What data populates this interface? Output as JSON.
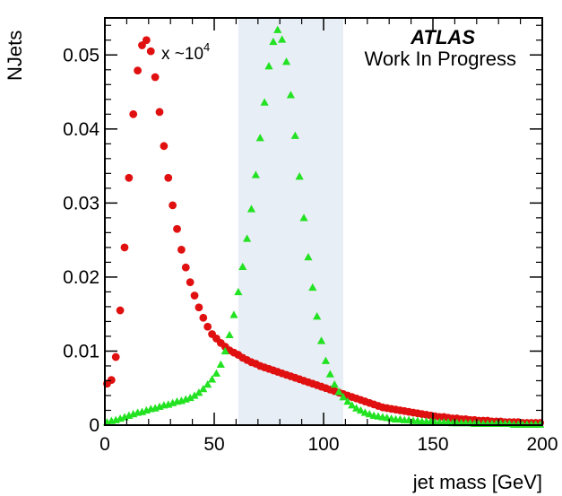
{
  "chart_data": {
    "type": "scatter",
    "xlabel": "jet mass [GeV]",
    "ylabel": "NJets",
    "xlim": [
      0,
      200
    ],
    "ylim": [
      0,
      0.055
    ],
    "x_ticks": [
      "0",
      "50",
      "100",
      "150",
      "200"
    ],
    "y_ticks": [
      "0",
      "0.01",
      "0.02",
      "0.03",
      "0.04",
      "0.05"
    ],
    "x_tick_values": [
      0,
      50,
      100,
      150,
      200
    ],
    "y_tick_values": [
      0,
      0.01,
      0.02,
      0.03,
      0.04,
      0.05
    ],
    "annotations": {
      "experiment": "ATLAS",
      "status": "Work In Progress",
      "scale_prefix": "x ~10",
      "scale_exponent": "4"
    },
    "highlight_band": {
      "x_start": 61,
      "x_end": 109,
      "color": "#e8eef5"
    },
    "grid": false,
    "series": [
      {
        "marker": "circle",
        "color": "#e01010",
        "x": [
          1,
          3,
          5,
          7,
          9,
          11,
          13,
          15,
          17,
          19,
          21,
          23,
          25,
          27,
          29,
          31,
          33,
          35,
          37,
          39,
          41,
          43,
          45,
          47,
          49,
          51,
          53,
          55,
          57,
          59,
          61,
          63,
          65,
          67,
          69,
          71,
          73,
          75,
          77,
          79,
          81,
          83,
          85,
          87,
          89,
          91,
          93,
          95,
          97,
          99,
          101,
          103,
          105,
          107,
          109,
          111,
          113,
          115,
          117,
          119,
          121,
          123,
          125,
          127,
          129,
          131,
          133,
          135,
          137,
          139,
          141,
          143,
          145,
          147,
          149,
          151,
          153,
          155,
          157,
          159,
          161,
          163,
          165,
          167,
          169,
          171,
          173,
          175,
          177,
          179,
          181,
          183,
          185,
          187,
          189,
          191,
          193,
          195,
          197,
          199
        ],
        "y": [
          0.0056,
          0.0061,
          0.0092,
          0.0155,
          0.024,
          0.0334,
          0.042,
          0.0479,
          0.0513,
          0.052,
          0.0505,
          0.047,
          0.0423,
          0.0377,
          0.0334,
          0.0297,
          0.0265,
          0.0237,
          0.0213,
          0.0193,
          0.0175,
          0.0159,
          0.0145,
          0.0133,
          0.0123,
          0.0117,
          0.0111,
          0.0106,
          0.0101,
          0.0098,
          0.0095,
          0.0091,
          0.0088,
          0.0085,
          0.0083,
          0.008,
          0.0078,
          0.0076,
          0.0074,
          0.0072,
          0.007,
          0.0068,
          0.0066,
          0.0064,
          0.0062,
          0.006,
          0.0058,
          0.0056,
          0.0054,
          0.0052,
          0.005,
          0.0048,
          0.0046,
          0.0044,
          0.0042,
          0.004,
          0.0038,
          0.0036,
          0.0034,
          0.0032,
          0.003,
          0.0028,
          0.0026,
          0.0024,
          0.0023,
          0.0022,
          0.0021,
          0.002,
          0.0019,
          0.0018,
          0.0017,
          0.0016,
          0.0015,
          0.0014,
          0.0013,
          0.0012,
          0.0011,
          0.0011,
          0.001,
          0.0009,
          0.0009,
          0.0008,
          0.0008,
          0.0007,
          0.0007,
          0.0006,
          0.0006,
          0.0006,
          0.0005,
          0.0005,
          0.0005,
          0.0004,
          0.0004,
          0.0004,
          0.0004,
          0.0003,
          0.0003,
          0.0003,
          0.0003,
          0.0003
        ]
      },
      {
        "marker": "triangle",
        "color": "#22e222",
        "x": [
          1,
          3,
          5,
          7,
          9,
          11,
          13,
          15,
          17,
          19,
          21,
          23,
          25,
          27,
          29,
          31,
          33,
          35,
          37,
          39,
          41,
          43,
          45,
          47,
          49,
          51,
          53,
          55,
          57,
          59,
          61,
          63,
          65,
          67,
          69,
          71,
          73,
          75,
          77,
          79,
          81,
          83,
          85,
          87,
          89,
          91,
          93,
          95,
          97,
          99,
          101,
          103,
          105,
          107,
          109,
          111,
          113,
          115,
          117,
          119,
          121,
          123,
          125,
          127,
          129,
          131,
          133,
          135,
          137,
          139,
          141,
          143,
          145,
          147,
          149,
          151,
          153,
          155,
          157,
          159,
          161,
          163,
          165,
          167,
          169,
          171,
          173,
          175,
          177,
          179,
          181,
          183,
          185,
          187,
          189,
          191,
          193,
          195,
          197,
          199
        ],
        "y": [
          0.0004,
          0.0006,
          0.0007,
          0.0009,
          0.0011,
          0.0013,
          0.0015,
          0.0017,
          0.0018,
          0.002,
          0.0022,
          0.0023,
          0.0025,
          0.0027,
          0.0028,
          0.003,
          0.0032,
          0.0033,
          0.0035,
          0.0037,
          0.004,
          0.0044,
          0.0049,
          0.0055,
          0.0062,
          0.007,
          0.0082,
          0.01,
          0.0122,
          0.0149,
          0.018,
          0.0214,
          0.0252,
          0.0292,
          0.0338,
          0.0388,
          0.0436,
          0.0485,
          0.0518,
          0.0534,
          0.0521,
          0.0491,
          0.0446,
          0.0391,
          0.0336,
          0.028,
          0.0227,
          0.0186,
          0.0147,
          0.0114,
          0.0087,
          0.0069,
          0.0055,
          0.0045,
          0.0038,
          0.0032,
          0.0027,
          0.0023,
          0.002,
          0.0017,
          0.0015,
          0.0013,
          0.0012,
          0.0011,
          0.001,
          0.0009,
          0.0008,
          0.0008,
          0.0007,
          0.0007,
          0.0006,
          0.0006,
          0.0005,
          0.0005,
          0.0005,
          0.0004,
          0.0004,
          0.0004,
          0.0004,
          0.0003,
          0.0003,
          0.0003,
          0.0003,
          0.0003,
          0.0002,
          0.0002,
          0.0002,
          0.0002,
          0.0002,
          0.0002,
          0.0002,
          0.0002,
          0.0002,
          0.0001,
          0.0001,
          0.0001,
          0.0001,
          0.0001,
          0.0001,
          0.0001
        ]
      }
    ]
  }
}
